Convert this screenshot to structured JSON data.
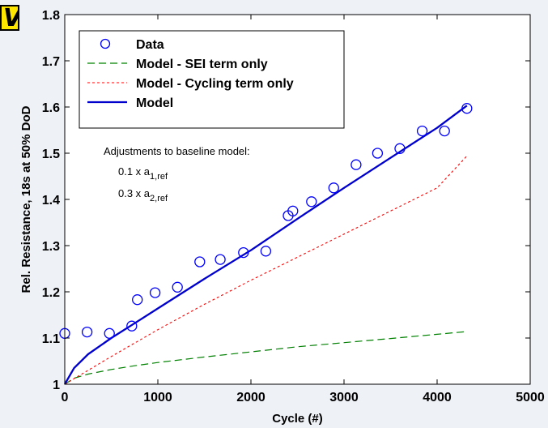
{
  "corner_tag": "V",
  "chart_data": {
    "type": "line",
    "title": "",
    "xlabel": "Cycle (#)",
    "ylabel": "Rel. Resistance, 18s at 50% DoD",
    "xlim": [
      0,
      5000
    ],
    "ylim": [
      1.0,
      1.8
    ],
    "xticks": [
      0,
      1000,
      2000,
      3000,
      4000,
      5000
    ],
    "xtick_labels": [
      "0",
      "1000",
      "2000",
      "3000",
      "4000",
      "5000"
    ],
    "yticks": [
      1.0,
      1.1,
      1.2,
      1.3,
      1.4,
      1.5,
      1.6,
      1.7,
      1.8
    ],
    "ytick_labels": [
      "1",
      "1.1",
      "1.2",
      "1.3",
      "1.4",
      "1.5",
      "1.6",
      "1.7",
      "1.8"
    ],
    "grid": false,
    "legend_position": "top-left",
    "series": [
      {
        "name": "Data",
        "style": "markers",
        "color": "#0000ff",
        "points": [
          [
            0,
            1.11
          ],
          [
            240,
            1.113
          ],
          [
            480,
            1.11
          ],
          [
            720,
            1.126
          ],
          [
            780,
            1.183
          ],
          [
            970,
            1.198
          ],
          [
            1210,
            1.21
          ],
          [
            1450,
            1.265
          ],
          [
            1670,
            1.27
          ],
          [
            1920,
            1.285
          ],
          [
            2160,
            1.288
          ],
          [
            2400,
            1.365
          ],
          [
            2450,
            1.375
          ],
          [
            2650,
            1.395
          ],
          [
            2890,
            1.425
          ],
          [
            3130,
            1.475
          ],
          [
            3360,
            1.5
          ],
          [
            3600,
            1.51
          ],
          [
            3840,
            1.548
          ],
          [
            4080,
            1.548
          ],
          [
            4320,
            1.597
          ]
        ]
      },
      {
        "name": "Model - SEI term only",
        "style": "dash",
        "color": "#008000",
        "points": [
          [
            0,
            1.0
          ],
          [
            100,
            1.013
          ],
          [
            250,
            1.022
          ],
          [
            500,
            1.032
          ],
          [
            750,
            1.04
          ],
          [
            1000,
            1.047
          ],
          [
            1500,
            1.059
          ],
          [
            2000,
            1.07
          ],
          [
            2500,
            1.081
          ],
          [
            3000,
            1.09
          ],
          [
            3500,
            1.099
          ],
          [
            4000,
            1.108
          ],
          [
            4320,
            1.114
          ]
        ]
      },
      {
        "name": "Model - Cycling term only",
        "style": "dot",
        "color": "#ff0000",
        "points": [
          [
            0,
            1.0
          ],
          [
            500,
            1.06
          ],
          [
            1000,
            1.118
          ],
          [
            1500,
            1.173
          ],
          [
            2000,
            1.225
          ],
          [
            2500,
            1.275
          ],
          [
            3000,
            1.325
          ],
          [
            3500,
            1.375
          ],
          [
            4000,
            1.425
          ],
          [
            4320,
            1.494
          ]
        ]
      },
      {
        "name": "Model",
        "style": "solid",
        "color": "#0000cc",
        "points": [
          [
            0,
            1.0
          ],
          [
            100,
            1.035
          ],
          [
            250,
            1.065
          ],
          [
            500,
            1.1
          ],
          [
            750,
            1.132
          ],
          [
            1000,
            1.164
          ],
          [
            1500,
            1.228
          ],
          [
            2000,
            1.29
          ],
          [
            2500,
            1.358
          ],
          [
            3000,
            1.425
          ],
          [
            3500,
            1.49
          ],
          [
            4000,
            1.555
          ],
          [
            4320,
            1.603
          ]
        ]
      }
    ],
    "annotation": {
      "heading": "Adjustments to baseline model:",
      "line1_prefix": "0.1 x a",
      "line1_sub": "1,ref",
      "line2_prefix": "0.3 x a",
      "line2_sub": "2,ref"
    }
  }
}
